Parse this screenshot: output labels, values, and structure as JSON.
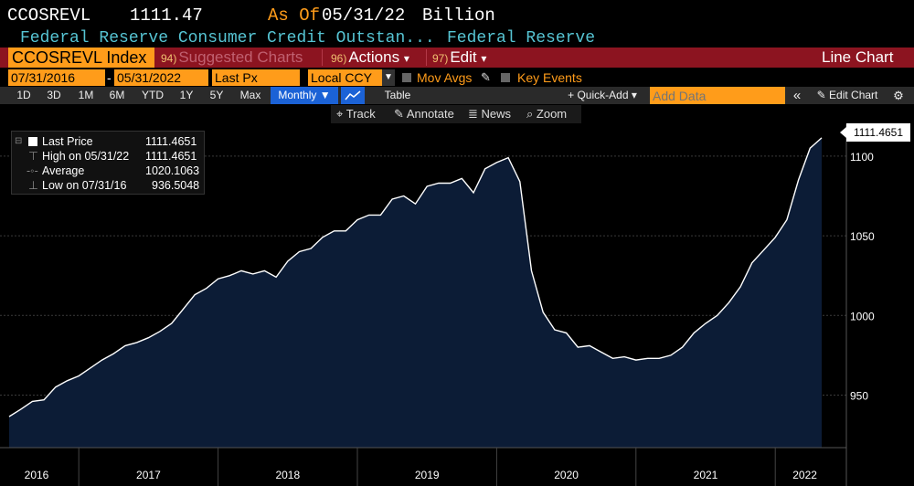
{
  "header": {
    "ticker": "CCOSREVL",
    "price": "1111.47",
    "asof_label": "As Of",
    "asof_date": "05/31/22",
    "units": "Billion",
    "description": "Federal Reserve Consumer Credit Outstan...",
    "source": "Federal Reserve"
  },
  "menubar": {
    "security": "CCOSREVL Index",
    "suggested_num": "94)",
    "suggested": "Suggested Charts",
    "actions_num": "96)",
    "actions": "Actions",
    "edit_num": "97)",
    "edit": "Edit",
    "arrow": "▾",
    "chart_type": "Line Chart"
  },
  "controls": {
    "start_date": "07/31/2016",
    "dash": "-",
    "end_date": "05/31/2022",
    "field": "Last Px",
    "currency": "Local CCY",
    "mov_avgs": "Mov Avgs",
    "key_events": "Key Events"
  },
  "ranges": [
    "1D",
    "3D",
    "1M",
    "6M",
    "YTD",
    "1Y",
    "5Y",
    "Max"
  ],
  "period": "Monthly ▼",
  "table_label": "Table",
  "quick_add": "+ Quick-Add ▾",
  "add_data_placeholder": "Add Data",
  "collapse": "«",
  "edit_chart": "Edit Chart",
  "toolbar": {
    "track": "Track",
    "annotate": "Annotate",
    "news": "News",
    "zoom": "Zoom"
  },
  "legend": {
    "last_label": "Last Price",
    "last_value": "1111.4651",
    "high_label": "High on 05/31/22",
    "high_value": "1111.4651",
    "avg_label": "Average",
    "avg_value": "1020.1063",
    "low_label": "Low on 07/31/16",
    "low_value": "936.5048"
  },
  "price_tag": "1111.4651",
  "colors": {
    "orange": "#ff9c1a",
    "cyan": "#56c4d3",
    "menu_red": "#8c1420",
    "area_fill": "#0c1c36",
    "line": "#ffffff"
  },
  "chart_data": {
    "type": "area",
    "series_name": "Last Price",
    "ylim": [
      917,
      1120
    ],
    "yticks": [
      950,
      1000,
      1050,
      1100
    ],
    "ytick_labels": [
      "950",
      "1000",
      "1050",
      "1100"
    ],
    "x_start": "2016-07",
    "x_end": "2022-05",
    "year_labels": [
      "2016",
      "2017",
      "2018",
      "2019",
      "2020",
      "2021",
      "2022"
    ],
    "values": [
      936.5,
      941,
      946,
      947,
      955,
      959,
      962,
      967,
      972,
      976,
      981,
      983,
      986,
      990,
      995,
      1004,
      1013,
      1017,
      1023,
      1025,
      1028,
      1026,
      1028,
      1024,
      1034,
      1040,
      1042,
      1049,
      1053,
      1053,
      1060,
      1063,
      1063,
      1073,
      1075,
      1070,
      1081,
      1083,
      1083,
      1086,
      1077,
      1092,
      1096,
      1099,
      1084,
      1028,
      1002,
      991,
      989,
      980,
      981,
      977,
      973,
      974,
      972,
      973,
      973,
      975,
      980,
      989,
      995,
      1000,
      1008,
      1018,
      1033,
      1041,
      1049,
      1060,
      1085,
      1105,
      1111.4651
    ]
  }
}
